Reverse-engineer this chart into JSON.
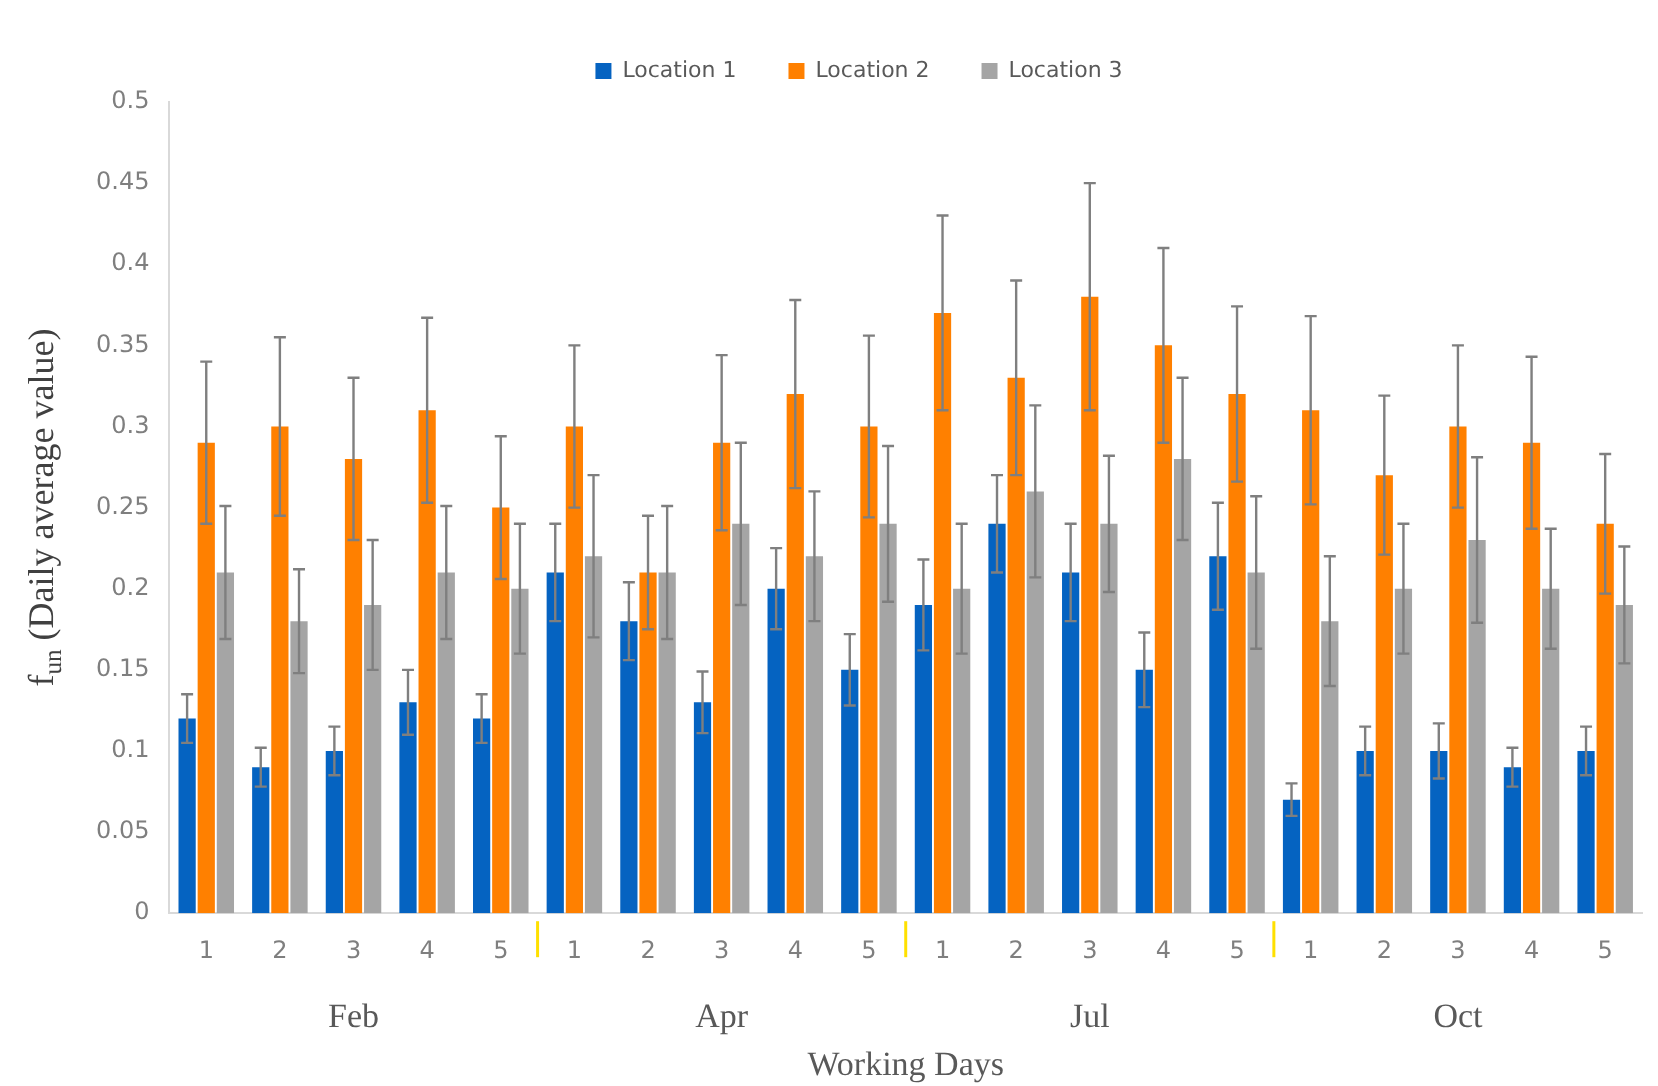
{
  "chart_data": {
    "type": "bar",
    "xlabel": "Working Days",
    "ylabel": "f$_{un}$ (Daily average value)",
    "categories": [
      "1",
      "2",
      "3",
      "4",
      "5",
      "1",
      "2",
      "3",
      "4",
      "5",
      "1",
      "2",
      "3",
      "4",
      "5",
      "1",
      "2",
      "3",
      "4",
      "5"
    ],
    "annotations": [
      "Feb",
      "Apr",
      "Jul",
      "Oct"
    ],
    "series": [
      {
        "name": "Location 1",
        "color": "#0563c1",
        "values": [
          0.12,
          0.09,
          0.1,
          0.13,
          0.12,
          0.21,
          0.18,
          0.13,
          0.2,
          0.15,
          0.19,
          0.24,
          0.21,
          0.15,
          0.22,
          0.07,
          0.1,
          0.1,
          0.09,
          0.1
        ],
        "errors": [
          0.015,
          0.012,
          0.015,
          0.02,
          0.015,
          0.03,
          0.024,
          0.019,
          0.025,
          0.022,
          0.028,
          0.03,
          0.03,
          0.023,
          0.033,
          0.01,
          0.015,
          0.017,
          0.012,
          0.015
        ]
      },
      {
        "name": "Location 2",
        "color": "#ff8000",
        "values": [
          0.29,
          0.3,
          0.28,
          0.31,
          0.25,
          0.3,
          0.21,
          0.29,
          0.32,
          0.3,
          0.37,
          0.33,
          0.38,
          0.35,
          0.32,
          0.31,
          0.27,
          0.3,
          0.29,
          0.24
        ],
        "errors": [
          0.05,
          0.055,
          0.05,
          0.057,
          0.044,
          0.05,
          0.035,
          0.054,
          0.058,
          0.056,
          0.06,
          0.06,
          0.07,
          0.06,
          0.054,
          0.058,
          0.049,
          0.05,
          0.053,
          0.043
        ]
      },
      {
        "name": "Location 3",
        "color": "#a5a5a5",
        "values": [
          0.21,
          0.18,
          0.19,
          0.21,
          0.2,
          0.22,
          0.21,
          0.24,
          0.22,
          0.24,
          0.2,
          0.26,
          0.24,
          0.28,
          0.21,
          0.18,
          0.2,
          0.23,
          0.2,
          0.19
        ],
        "errors": [
          0.041,
          0.032,
          0.04,
          0.041,
          0.04,
          0.05,
          0.041,
          0.05,
          0.04,
          0.048,
          0.04,
          0.053,
          0.042,
          0.05,
          0.047,
          0.04,
          0.04,
          0.051,
          0.037,
          0.036
        ]
      }
    ],
    "ylim": [
      0,
      0.5
    ],
    "yticks": [
      0,
      0.05,
      0.1,
      0.15,
      0.2,
      0.25,
      0.3,
      0.35,
      0.4,
      0.45,
      0.5
    ],
    "grid": false,
    "legend": "top"
  }
}
